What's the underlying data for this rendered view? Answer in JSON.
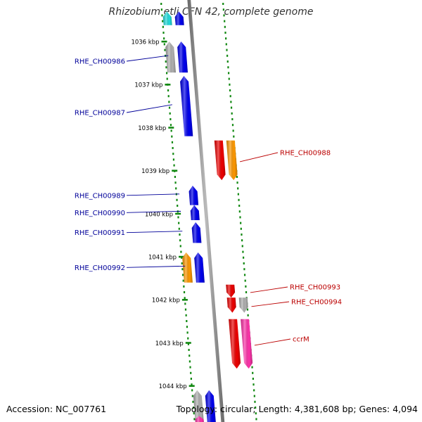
{
  "title": "Rhizobium etli CFN 42, complete genome",
  "footer": {
    "accession": "Accession: NC_007761",
    "topology": "Topology: circular; Length: 4,381,608 bp; Genes: 4,094"
  },
  "colors": {
    "blue_gene": "#0000ee",
    "red_gene": "#ee0000",
    "orange_gene": "#ff9900",
    "pink_gene": "#ff33aa",
    "gray_gene": "#b0b0b0",
    "cyan_gene": "#22dddd",
    "backbone": "#888888",
    "ticks": "#118811",
    "left_label": "#000099",
    "right_label": "#bb0000"
  },
  "scale": {
    "ticks": [
      {
        "label": "1036 kbp",
        "pos": 1036
      },
      {
        "label": "1037 kbp",
        "pos": 1037
      },
      {
        "label": "1038 kbp",
        "pos": 1038
      },
      {
        "label": "1039 kbp",
        "pos": 1039
      },
      {
        "label": "1040 kbp",
        "pos": 1040
      },
      {
        "label": "1041 kbp",
        "pos": 1041
      },
      {
        "label": "1042 kbp",
        "pos": 1042
      },
      {
        "label": "1043 kbp",
        "pos": 1043
      },
      {
        "label": "1044 kbp",
        "pos": 1044
      }
    ]
  },
  "genes": [
    {
      "label": "",
      "start": 1035.3,
      "end": 1035.62,
      "strand": "-",
      "track": 1,
      "color": "#22dddd"
    },
    {
      "label": "",
      "start": 1035.3,
      "end": 1035.62,
      "strand": "-",
      "track": 0,
      "color": "#0000ee"
    },
    {
      "label": "",
      "start": 1036.0,
      "end": 1036.72,
      "strand": "-",
      "track": 1,
      "color": "#b0b0b0"
    },
    {
      "label": "RHE_CH00986",
      "start": 1036.0,
      "end": 1036.72,
      "strand": "-",
      "track": 0,
      "color": "#0000ee"
    },
    {
      "label": "RHE_CH00987",
      "start": 1036.8,
      "end": 1038.2,
      "strand": "-",
      "track": 0,
      "color": "#0000ee"
    },
    {
      "label": "RHE_CH00988",
      "start": 1038.3,
      "end": 1039.22,
      "strand": "+",
      "track": 0,
      "color": "#ee0000"
    },
    {
      "label": "",
      "start": 1038.3,
      "end": 1039.22,
      "strand": "+",
      "track": 1,
      "color": "#ff9900"
    },
    {
      "label": "RHE_CH00989",
      "start": 1039.35,
      "end": 1039.8,
      "strand": "-",
      "track": 0,
      "color": "#0000ee"
    },
    {
      "label": "RHE_CH00990",
      "start": 1039.8,
      "end": 1040.15,
      "strand": "-",
      "track": 0,
      "color": "#0000ee"
    },
    {
      "label": "RHE_CH00991",
      "start": 1040.2,
      "end": 1040.68,
      "strand": "-",
      "track": 0,
      "color": "#0000ee"
    },
    {
      "label": "",
      "start": 1040.9,
      "end": 1041.6,
      "strand": "-",
      "track": 1,
      "color": "#ff9900"
    },
    {
      "label": "RHE_CH00992",
      "start": 1040.9,
      "end": 1041.6,
      "strand": "-",
      "track": 0,
      "color": "#0000ee"
    },
    {
      "label": "RHE_CH00993",
      "start": 1041.65,
      "end": 1041.95,
      "strand": "+",
      "track": 0,
      "color": "#ee0000"
    },
    {
      "label": "RHE_CH00994",
      "start": 1041.95,
      "end": 1042.3,
      "strand": "+",
      "track": 0,
      "color": "#ee0000"
    },
    {
      "label": "",
      "start": 1041.95,
      "end": 1042.3,
      "strand": "+",
      "track": 1,
      "color": "#b0b0b0"
    },
    {
      "label": "ccrM",
      "start": 1042.45,
      "end": 1043.6,
      "strand": "+",
      "track": 0,
      "color": "#ee0000"
    },
    {
      "label": "",
      "start": 1042.45,
      "end": 1043.6,
      "strand": "+",
      "track": 1,
      "color": "#ff33aa"
    },
    {
      "label": "",
      "start": 1044.1,
      "end": 1044.9,
      "strand": "-",
      "track": 1,
      "color": "#b0b0b0"
    },
    {
      "label": "",
      "start": 1044.1,
      "end": 1044.9,
      "strand": "-",
      "track": 0,
      "color": "#0000ee"
    },
    {
      "label": "",
      "start": 1044.7,
      "end": 1044.9,
      "strand": "-",
      "track": 1,
      "color": "#ff33aa"
    }
  ]
}
